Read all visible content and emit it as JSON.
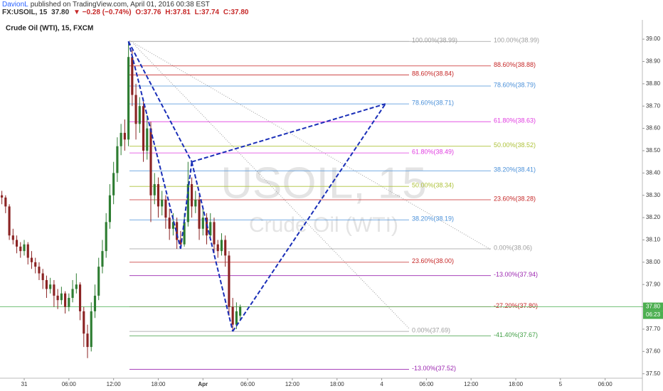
{
  "chart_data": {
    "type": "candlestick",
    "title": "Crude Oil (WTI), 15, FXCM",
    "author": "DavionL",
    "published": "published on TradingView.com, April 01, 2016 00:38 EST",
    "symbol": "FX:USOIL, 15",
    "quote": {
      "last": "37.80",
      "change": "▼ −0.28 (−0.74%)",
      "open": "O:37.76",
      "high": "H:37.81",
      "low": "L:37.74",
      "close": "C:37.80"
    },
    "watermark": [
      "USOIL, 15",
      "Crude Oil (WTI)"
    ],
    "up_color": "#2e7d32",
    "down_color": "#8b2323",
    "x": [
      -3,
      -2.5,
      -2,
      -1.5,
      -1,
      -0.5,
      0,
      0.5,
      1,
      1.5,
      2,
      2.5,
      3,
      3.5,
      4,
      4.5,
      5,
      5.5,
      6,
      6.5,
      7,
      7.5,
      8,
      8.5,
      9,
      9.5,
      10,
      10.5,
      11,
      11.5,
      12,
      12.5,
      13,
      13.5,
      14,
      14.5,
      15,
      15.5,
      16,
      16.5,
      17,
      17.5,
      18,
      18.5,
      19,
      19.5,
      20,
      20.5,
      21,
      21.5,
      22,
      22.5,
      23,
      23.5,
      24,
      24.5,
      25,
      25.5,
      26,
      26.5,
      27,
      27.5,
      28,
      28.5,
      29
    ],
    "candles": [
      [
        38.3,
        38.32,
        38.26,
        38.29
      ],
      [
        38.29,
        38.3,
        38.22,
        38.25
      ],
      [
        38.25,
        38.26,
        38.1,
        38.12
      ],
      [
        38.12,
        38.15,
        38.08,
        38.1
      ],
      [
        38.1,
        38.12,
        38.04,
        38.07
      ],
      [
        38.07,
        38.09,
        38.02,
        38.05
      ],
      [
        38.05,
        38.1,
        38.03,
        38.08
      ],
      [
        38.08,
        38.09,
        37.99,
        38.02
      ],
      [
        38.02,
        38.05,
        37.97,
        38.0
      ],
      [
        38.0,
        38.02,
        37.95,
        37.98
      ],
      [
        37.98,
        38.0,
        37.92,
        37.95
      ],
      [
        37.95,
        37.97,
        37.88,
        37.92
      ],
      [
        37.92,
        37.94,
        37.84,
        37.88
      ],
      [
        37.88,
        37.93,
        37.86,
        37.9
      ],
      [
        37.9,
        37.92,
        37.8,
        37.85
      ],
      [
        37.85,
        37.88,
        37.79,
        37.83
      ],
      [
        37.83,
        37.89,
        37.81,
        37.86
      ],
      [
        37.86,
        37.87,
        37.77,
        37.8
      ],
      [
        37.8,
        37.86,
        37.78,
        37.84
      ],
      [
        37.84,
        37.92,
        37.82,
        37.88
      ],
      [
        37.88,
        37.95,
        37.86,
        37.9
      ],
      [
        37.9,
        37.91,
        37.74,
        37.78
      ],
      [
        37.78,
        37.8,
        37.62,
        37.68
      ],
      [
        37.68,
        37.72,
        37.57,
        37.62
      ],
      [
        37.62,
        37.82,
        37.6,
        37.78
      ],
      [
        37.78,
        37.9,
        37.75,
        37.85
      ],
      [
        37.85,
        38.02,
        37.83,
        37.98
      ],
      [
        37.98,
        38.1,
        37.95,
        38.05
      ],
      [
        38.05,
        38.22,
        38.02,
        38.18
      ],
      [
        38.18,
        38.35,
        38.15,
        38.3
      ],
      [
        38.3,
        38.45,
        38.26,
        38.4
      ],
      [
        38.4,
        38.56,
        38.36,
        38.52
      ],
      [
        38.52,
        38.62,
        38.48,
        38.58
      ],
      [
        38.58,
        38.64,
        38.5,
        38.55
      ],
      [
        38.55,
        38.99,
        38.52,
        38.92
      ],
      [
        38.92,
        38.95,
        38.7,
        38.75
      ],
      [
        38.75,
        38.8,
        38.55,
        38.62
      ],
      [
        38.62,
        38.74,
        38.58,
        38.7
      ],
      [
        38.7,
        38.72,
        38.45,
        38.5
      ],
      [
        38.5,
        38.66,
        38.46,
        38.6
      ],
      [
        38.6,
        38.63,
        38.18,
        38.3
      ],
      [
        38.3,
        38.4,
        38.26,
        38.35
      ],
      [
        38.35,
        38.38,
        38.2,
        38.25
      ],
      [
        38.25,
        38.32,
        38.21,
        38.28
      ],
      [
        38.28,
        38.3,
        38.15,
        38.2
      ],
      [
        38.2,
        38.24,
        38.1,
        38.15
      ],
      [
        38.15,
        38.22,
        38.12,
        38.18
      ],
      [
        38.18,
        38.2,
        38.06,
        38.1
      ],
      [
        38.1,
        38.14,
        38.06,
        38.08
      ],
      [
        38.08,
        38.22,
        38.07,
        38.18
      ],
      [
        38.18,
        38.45,
        38.16,
        38.35
      ],
      [
        38.35,
        38.38,
        38.2,
        38.25
      ],
      [
        38.25,
        38.32,
        38.22,
        38.28
      ],
      [
        38.28,
        38.3,
        38.1,
        38.15
      ],
      [
        38.15,
        38.24,
        38.12,
        38.2
      ],
      [
        38.2,
        38.22,
        38.08,
        38.12
      ],
      [
        38.12,
        38.22,
        38.1,
        38.18
      ],
      [
        38.18,
        38.2,
        38.04,
        38.08
      ],
      [
        38.08,
        38.1,
        38.02,
        38.05
      ],
      [
        38.05,
        38.13,
        38.03,
        38.1
      ],
      [
        38.1,
        38.12,
        37.98,
        38.03
      ],
      [
        38.03,
        38.05,
        37.76,
        37.8
      ],
      [
        37.8,
        37.84,
        37.69,
        37.72
      ],
      [
        37.72,
        37.82,
        37.7,
        37.78
      ],
      [
        37.76,
        37.81,
        37.74,
        37.8
      ]
    ],
    "xlim": [
      -3.25,
      83
    ],
    "xticks": [
      {
        "value": 0,
        "label": "31"
      },
      {
        "value": 6,
        "label": "06:00"
      },
      {
        "value": 12,
        "label": "12:00"
      },
      {
        "value": 18,
        "label": "18:00"
      },
      {
        "value": 24,
        "label": "Apr"
      },
      {
        "value": 30,
        "label": "06:00"
      },
      {
        "value": 36,
        "label": "12:00"
      },
      {
        "value": 42,
        "label": "18:00"
      },
      {
        "value": 48,
        "label": "4"
      },
      {
        "value": 54,
        "label": "06:00"
      },
      {
        "value": 60,
        "label": "12:00"
      },
      {
        "value": 66,
        "label": "18:00"
      },
      {
        "value": 72,
        "label": "5"
      },
      {
        "value": 78,
        "label": "06:00"
      }
    ],
    "ylim": [
      37.48,
      39.08
    ],
    "yticks": [
      {
        "value": 37.5,
        "label": "37.50"
      },
      {
        "value": 37.6,
        "label": "37.60"
      },
      {
        "value": 37.7,
        "label": "37.70"
      },
      {
        "value": 37.8,
        "label": "37.80"
      },
      {
        "value": 37.9,
        "label": "37.90"
      },
      {
        "value": 38.0,
        "label": "38.00"
      },
      {
        "value": 38.1,
        "label": "38.10"
      },
      {
        "value": 38.2,
        "label": "38.20"
      },
      {
        "value": 38.3,
        "label": "38.30"
      },
      {
        "value": 38.4,
        "label": "38.40"
      },
      {
        "value": 38.5,
        "label": "38.50"
      },
      {
        "value": 38.6,
        "label": "38.60"
      },
      {
        "value": 38.7,
        "label": "38.70"
      },
      {
        "value": 38.8,
        "label": "38.80"
      },
      {
        "value": 38.9,
        "label": "38.90"
      },
      {
        "value": 39.0,
        "label": "39.00"
      }
    ],
    "last_price": {
      "value": 37.8,
      "label": "37.80"
    },
    "last_color": "#4caf50",
    "countdown": "06:23",
    "fib_retracements": [
      {
        "value": 38.99,
        "label": "100.00%(38.99)",
        "color": "#9e9e9e"
      },
      {
        "value": 38.84,
        "label": "88.60%(38.84)",
        "color": "#c62828"
      },
      {
        "value": 38.71,
        "label": "78.60%(38.71)",
        "color": "#4a90d9"
      },
      {
        "value": 38.49,
        "label": "61.80%(38.49)",
        "color": "#e03ce0"
      },
      {
        "value": 38.34,
        "label": "50.00%(38.34)",
        "color": "#aec23a"
      },
      {
        "value": 38.19,
        "label": "38.20%(38.19)",
        "color": "#4a90d9"
      },
      {
        "value": 38.0,
        "label": "23.60%(38.00)",
        "color": "#c62828"
      },
      {
        "value": 37.69,
        "label": "0.00%(37.69)",
        "color": "#9e9e9e"
      },
      {
        "value": 37.52,
        "label": "-13.00%(37.52)",
        "color": "#9c27b0"
      }
    ],
    "fib_extensions": [
      {
        "value": 38.99,
        "label": "100.00%(38.99)",
        "color": "#9e9e9e"
      },
      {
        "value": 38.88,
        "label": "88.60%(38.88)",
        "color": "#c62828"
      },
      {
        "value": 38.79,
        "label": "78.60%(38.79)",
        "color": "#4a90d9"
      },
      {
        "value": 38.63,
        "label": "61.80%(38.63)",
        "color": "#e03ce0"
      },
      {
        "value": 38.52,
        "label": "50.00%(38.52)",
        "color": "#aec23a"
      },
      {
        "value": 38.41,
        "label": "38.20%(38.41)",
        "color": "#4a90d9"
      },
      {
        "value": 38.28,
        "label": "23.60%(38.28)",
        "color": "#c62828"
      },
      {
        "value": 38.06,
        "label": "0.00%(38.06)",
        "color": "#9e9e9e"
      },
      {
        "value": 37.94,
        "label": "-13.00%(37.94)",
        "color": "#9c27b0"
      },
      {
        "value": 37.8,
        "label": "-27.20%(37.80)",
        "color": "#c62828"
      },
      {
        "value": 37.67,
        "label": "-41.40%(37.67)",
        "color": "#43a047"
      }
    ],
    "pattern": {
      "color": "#1a2fb8",
      "x": [
        14,
        21,
        22.5,
        28,
        48.5
      ],
      "values": [
        38.99,
        38.06,
        38.45,
        37.69,
        38.71
      ]
    }
  }
}
